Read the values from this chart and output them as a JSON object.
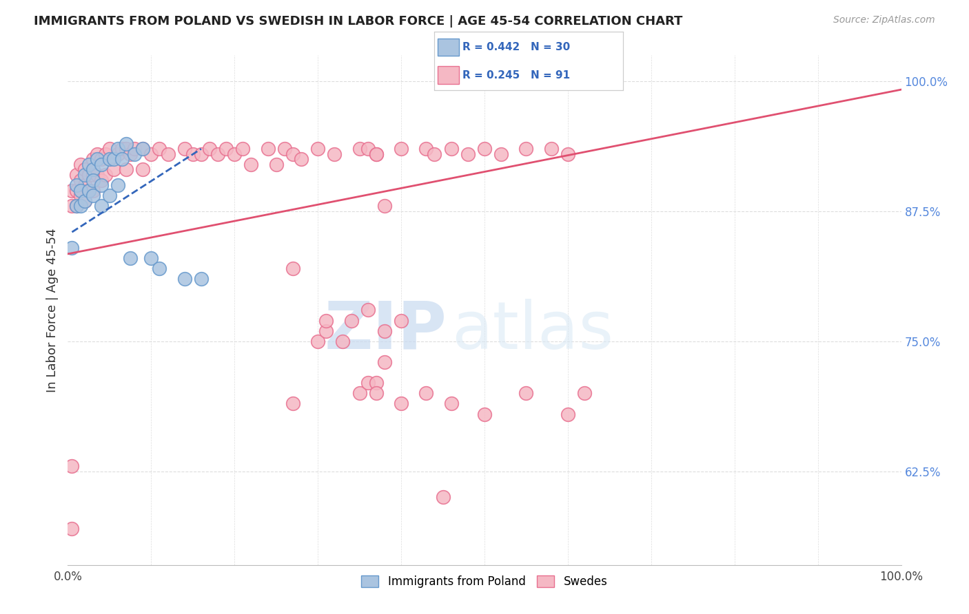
{
  "title": "IMMIGRANTS FROM POLAND VS SWEDISH IN LABOR FORCE | AGE 45-54 CORRELATION CHART",
  "source": "Source: ZipAtlas.com",
  "ylabel": "In Labor Force | Age 45-54",
  "xlim": [
    0.0,
    1.0
  ],
  "ylim": [
    0.535,
    1.025
  ],
  "y_ticks_right": [
    0.625,
    0.75,
    0.875,
    1.0
  ],
  "y_tick_labels_right": [
    "62.5%",
    "75.0%",
    "87.5%",
    "100.0%"
  ],
  "legend_labels": [
    "Immigrants from Poland",
    "Swedes"
  ],
  "poland_color": "#aac4e0",
  "poland_color_edge": "#6699cc",
  "swedes_color": "#f5b8c4",
  "swedes_color_edge": "#e87090",
  "poland_trend_color": "#3366bb",
  "swedes_trend_color": "#e05070",
  "background_color": "#ffffff",
  "grid_color": "#dddddd",
  "poland_x": [
    0.005,
    0.01,
    0.01,
    0.015,
    0.015,
    0.02,
    0.02,
    0.025,
    0.025,
    0.03,
    0.03,
    0.03,
    0.035,
    0.04,
    0.04,
    0.04,
    0.05,
    0.05,
    0.055,
    0.06,
    0.06,
    0.065,
    0.07,
    0.075,
    0.08,
    0.09,
    0.1,
    0.11,
    0.14,
    0.16
  ],
  "poland_y": [
    0.84,
    0.9,
    0.88,
    0.895,
    0.88,
    0.91,
    0.885,
    0.92,
    0.895,
    0.915,
    0.905,
    0.89,
    0.925,
    0.92,
    0.9,
    0.88,
    0.925,
    0.89,
    0.925,
    0.935,
    0.9,
    0.925,
    0.94,
    0.83,
    0.93,
    0.935,
    0.83,
    0.82,
    0.81,
    0.81
  ],
  "swedes_x": [
    0.005,
    0.005,
    0.01,
    0.01,
    0.01,
    0.015,
    0.015,
    0.015,
    0.02,
    0.02,
    0.02,
    0.025,
    0.025,
    0.03,
    0.03,
    0.03,
    0.035,
    0.035,
    0.04,
    0.04,
    0.045,
    0.045,
    0.05,
    0.055,
    0.06,
    0.065,
    0.07,
    0.07,
    0.075,
    0.08,
    0.09,
    0.09,
    0.1,
    0.11,
    0.12,
    0.14,
    0.15,
    0.16,
    0.17,
    0.18,
    0.19,
    0.2,
    0.21,
    0.22,
    0.24,
    0.25,
    0.26,
    0.27,
    0.28,
    0.3,
    0.32,
    0.35,
    0.36,
    0.37,
    0.37,
    0.38,
    0.4,
    0.43,
    0.44,
    0.46,
    0.48,
    0.5,
    0.52,
    0.55,
    0.58,
    0.6,
    0.005,
    0.27,
    0.3,
    0.31,
    0.31,
    0.33,
    0.34,
    0.36,
    0.38,
    0.4,
    0.005,
    0.27,
    0.35,
    0.36,
    0.37,
    0.37,
    0.38,
    0.4,
    0.43,
    0.46,
    0.5,
    0.55,
    0.6,
    0.62,
    0.45
  ],
  "swedes_y": [
    0.895,
    0.88,
    0.91,
    0.895,
    0.88,
    0.92,
    0.905,
    0.89,
    0.915,
    0.9,
    0.885,
    0.91,
    0.895,
    0.925,
    0.91,
    0.895,
    0.93,
    0.91,
    0.925,
    0.905,
    0.93,
    0.91,
    0.935,
    0.915,
    0.93,
    0.935,
    0.935,
    0.915,
    0.93,
    0.935,
    0.935,
    0.915,
    0.93,
    0.935,
    0.93,
    0.935,
    0.93,
    0.93,
    0.935,
    0.93,
    0.935,
    0.93,
    0.935,
    0.92,
    0.935,
    0.92,
    0.935,
    0.93,
    0.925,
    0.935,
    0.93,
    0.935,
    0.935,
    0.93,
    0.93,
    0.88,
    0.935,
    0.935,
    0.93,
    0.935,
    0.93,
    0.935,
    0.93,
    0.935,
    0.935,
    0.93,
    0.57,
    0.82,
    0.75,
    0.76,
    0.77,
    0.75,
    0.77,
    0.78,
    0.76,
    0.77,
    0.63,
    0.69,
    0.7,
    0.71,
    0.71,
    0.7,
    0.73,
    0.69,
    0.7,
    0.69,
    0.68,
    0.7,
    0.68,
    0.7,
    0.6
  ],
  "swedes_trend_x0": 0.0,
  "swedes_trend_y0": 0.834,
  "swedes_trend_x1": 1.0,
  "swedes_trend_y1": 0.992,
  "poland_trend_x0": 0.005,
  "poland_trend_y0": 0.855,
  "poland_trend_x1": 0.16,
  "poland_trend_y1": 0.935
}
